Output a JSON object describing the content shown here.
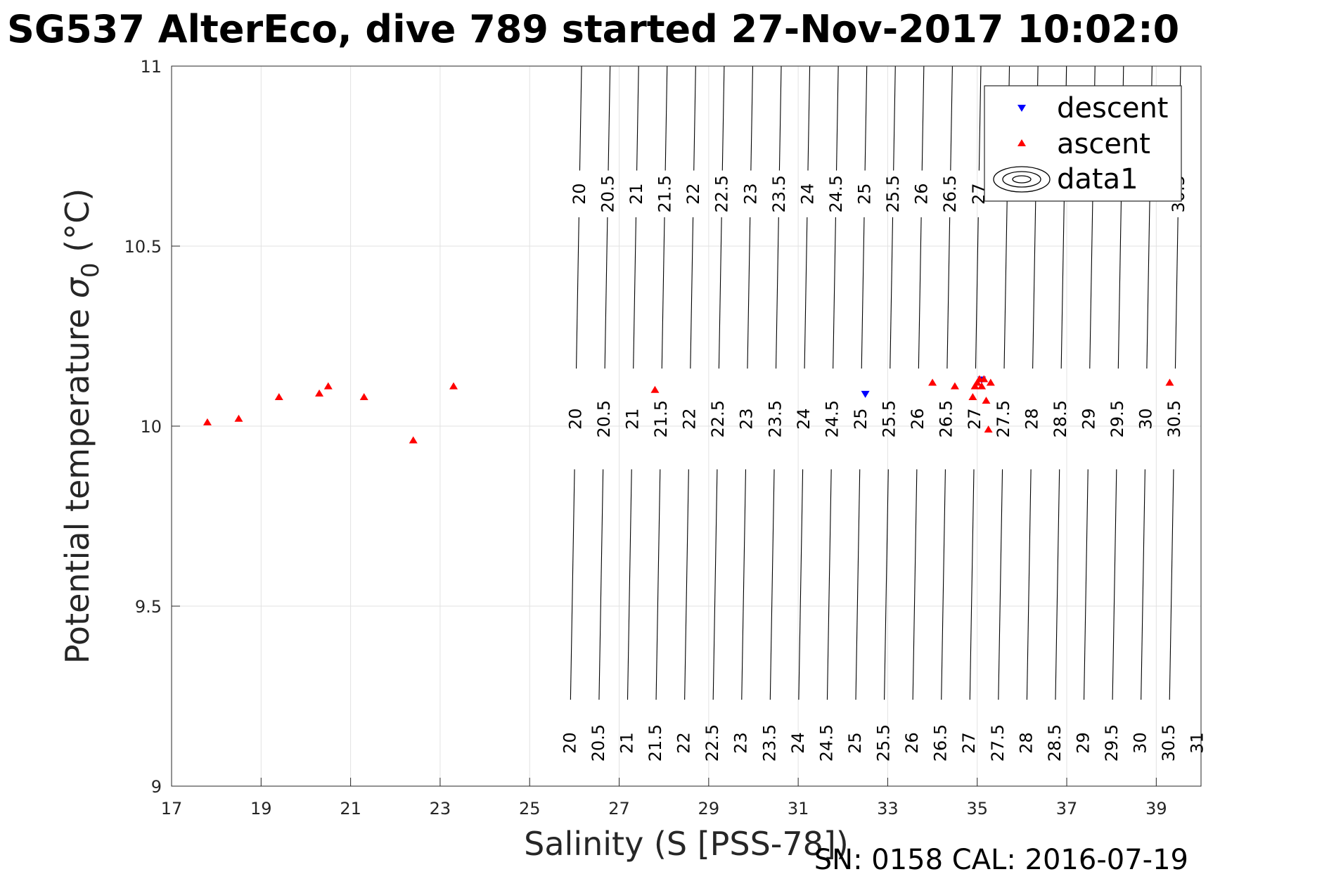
{
  "chart_data": {
    "type": "scatter",
    "title": "SG537 AlterEco, dive 789 started 27-Nov-2017 10:02:0",
    "xlabel": "Salinity (S [PSS-78])",
    "ylabel_main": "Potential temperature ",
    "ylabel_symbol": "σ",
    "ylabel_sub": "0",
    "ylabel_unit": " (°C)",
    "xlim": [
      17,
      40
    ],
    "ylim": [
      9,
      11
    ],
    "x_ticks": [
      17,
      19,
      21,
      23,
      25,
      27,
      29,
      31,
      33,
      35,
      37,
      39
    ],
    "y_ticks": [
      9,
      9.5,
      10,
      10.5,
      11
    ],
    "grid": true,
    "legend_position": "top-right",
    "series": [
      {
        "name": "descent",
        "marker": "triangle-down",
        "color": "#0000ff",
        "points": [
          [
            32.5,
            10.09
          ],
          [
            35.1,
            10.13
          ]
        ]
      },
      {
        "name": "ascent",
        "marker": "triangle-up",
        "color": "#ff0000",
        "points": [
          [
            17.8,
            10.01
          ],
          [
            18.5,
            10.02
          ],
          [
            19.4,
            10.08
          ],
          [
            20.3,
            10.09
          ],
          [
            20.5,
            10.11
          ],
          [
            21.3,
            10.08
          ],
          [
            22.4,
            9.96
          ],
          [
            23.3,
            10.11
          ],
          [
            27.8,
            10.1
          ],
          [
            34.0,
            10.12
          ],
          [
            34.5,
            10.11
          ],
          [
            34.9,
            10.08
          ],
          [
            34.95,
            10.11
          ],
          [
            35.0,
            10.12
          ],
          [
            35.05,
            10.13
          ],
          [
            35.1,
            10.11
          ],
          [
            35.15,
            10.13
          ],
          [
            35.2,
            10.07
          ],
          [
            35.25,
            9.99
          ],
          [
            35.3,
            10.12
          ],
          [
            39.3,
            10.12
          ]
        ]
      },
      {
        "name": "data1",
        "type": "contour"
      }
    ],
    "contour_levels": [
      20,
      20.5,
      21,
      21.5,
      22,
      22.5,
      23,
      23.5,
      24,
      24.5,
      25,
      25.5,
      26,
      26.5,
      27,
      27.5,
      28,
      28.5,
      29,
      29.5,
      30,
      30.5,
      31
    ],
    "contour_labels_row1": [
      "20",
      "20.5",
      "21",
      "21.5",
      "22",
      "22.5",
      "23",
      "23.5",
      "24",
      "24.5",
      "25",
      "25.5",
      "26",
      "26.5",
      "27",
      "30.5"
    ],
    "contour_labels_row2": [
      "20",
      "20.5",
      "21",
      "21.5",
      "22",
      "22.5",
      "23",
      "23.5",
      "24",
      "24.5",
      "25",
      "25.5",
      "26",
      "26.5",
      "27",
      "27.5",
      "28",
      "28.5",
      "29",
      "29.5",
      "30",
      "30.5"
    ],
    "contour_labels_row3": [
      "20",
      "20.5",
      "21",
      "21.5",
      "22",
      "22.5",
      "23",
      "23.5",
      "24",
      "24.5",
      "25",
      "25.5",
      "26",
      "26.5",
      "27",
      "27.5",
      "28",
      "28.5",
      "29",
      "29.5",
      "30",
      "30.5",
      "31"
    ],
    "footer": "SN: 0158  CAL: 2016-07-19"
  }
}
